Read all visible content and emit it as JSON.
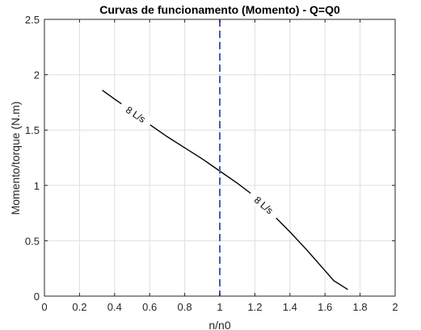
{
  "chart_data": {
    "type": "line",
    "title": "Curvas de funcionamento (Momento) - Q=Q0",
    "xlabel": "n/n0",
    "ylabel": "Momento/torque (N.m)",
    "xlim": [
      0,
      2
    ],
    "ylim": [
      0,
      2.5
    ],
    "xticks": [
      0,
      0.2,
      0.4,
      0.6,
      0.8,
      1,
      1.2,
      1.4,
      1.6,
      1.8,
      2
    ],
    "xtick_labels": [
      "0",
      "0.2",
      "0.4",
      "0.6",
      "0.8",
      "1",
      "1.2",
      "1.4",
      "1.6",
      "1.8",
      "2"
    ],
    "yticks": [
      0,
      0.5,
      1,
      1.5,
      2,
      2.5
    ],
    "ytick_labels": [
      "0",
      "0.5",
      "1",
      "1.5",
      "2",
      "2.5"
    ],
    "grid": true,
    "series": [
      {
        "label": "8 L/s",
        "color": "#000000",
        "x": [
          0.33,
          0.4,
          0.5,
          0.6,
          0.7,
          0.8,
          0.9,
          1.0,
          1.1,
          1.2,
          1.3,
          1.4,
          1.5,
          1.6,
          1.65,
          1.73
        ],
        "y": [
          1.86,
          1.78,
          1.67,
          1.55,
          1.44,
          1.34,
          1.24,
          1.13,
          1.02,
          0.9,
          0.74,
          0.58,
          0.41,
          0.23,
          0.14,
          0.06
        ],
        "label_positions": [
          {
            "x": 0.52,
            "y": 1.64,
            "angle": -33
          },
          {
            "x": 1.25,
            "y": 0.82,
            "angle": -40
          }
        ]
      }
    ],
    "reference_line": {
      "x": 1,
      "color": "#4a5bb0",
      "style": "dashed"
    }
  }
}
